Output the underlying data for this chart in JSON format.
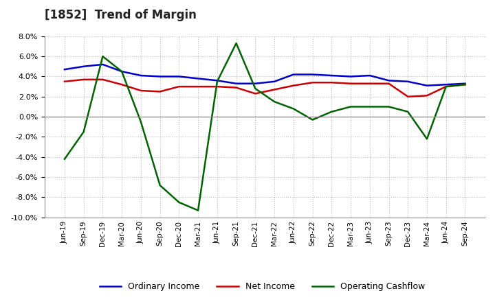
{
  "title": "[1852]  Trend of Margin",
  "x_labels": [
    "Jun-19",
    "Sep-19",
    "Dec-19",
    "Mar-20",
    "Jun-20",
    "Sep-20",
    "Dec-20",
    "Mar-21",
    "Jun-21",
    "Sep-21",
    "Dec-21",
    "Mar-22",
    "Jun-22",
    "Sep-22",
    "Dec-22",
    "Mar-23",
    "Jun-23",
    "Sep-23",
    "Dec-23",
    "Mar-24",
    "Jun-24",
    "Sep-24"
  ],
  "ordinary_income": [
    4.7,
    5.0,
    5.2,
    4.5,
    4.1,
    4.0,
    4.0,
    3.8,
    3.6,
    3.3,
    3.3,
    3.5,
    4.2,
    4.2,
    4.1,
    4.0,
    4.1,
    3.6,
    3.5,
    3.1,
    3.2,
    3.3
  ],
  "net_income": [
    3.5,
    3.7,
    3.7,
    3.2,
    2.6,
    2.5,
    3.0,
    3.0,
    3.0,
    2.9,
    2.3,
    2.7,
    3.1,
    3.4,
    3.4,
    3.3,
    3.3,
    3.3,
    2.0,
    2.1,
    3.0,
    3.2
  ],
  "operating_cashflow": [
    -4.2,
    -1.5,
    6.0,
    4.5,
    -0.5,
    -6.8,
    -8.5,
    -9.3,
    3.5,
    7.3,
    2.8,
    1.5,
    0.8,
    -0.3,
    0.5,
    1.0,
    1.0,
    1.0,
    0.5,
    -2.2,
    3.0,
    3.2
  ],
  "ylim": [
    -10.0,
    8.0
  ],
  "yticks": [
    -10.0,
    -8.0,
    -6.0,
    -4.0,
    -2.0,
    0.0,
    2.0,
    4.0,
    6.0,
    8.0
  ],
  "line_colors": {
    "ordinary_income": "#0000CC",
    "net_income": "#CC0000",
    "operating_cashflow": "#006400"
  },
  "legend_labels": [
    "Ordinary Income",
    "Net Income",
    "Operating Cashflow"
  ],
  "background_color": "#FFFFFF",
  "grid_color": "#BBBBBB"
}
